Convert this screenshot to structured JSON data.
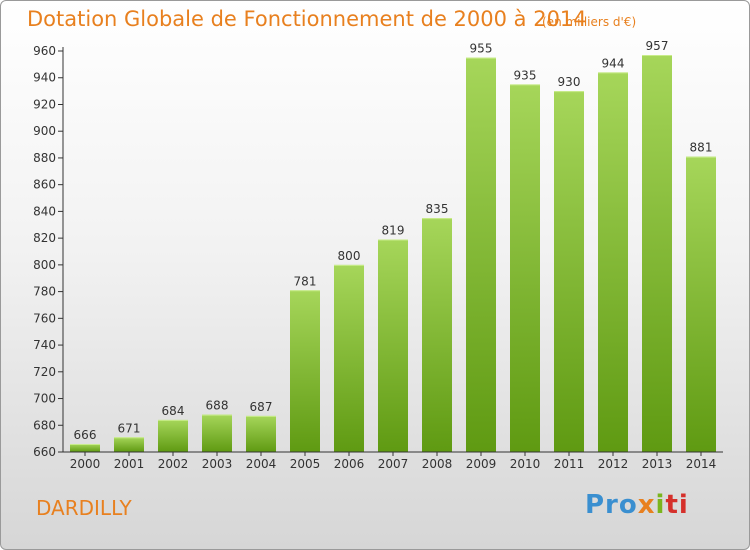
{
  "title": "Dotation Globale de Fonctionnement de 2000 à 2014",
  "subtitle": "(en milliers d'€)",
  "commune": "DARDILLY",
  "logo": {
    "text": "Proxiti",
    "letters": [
      "Pro",
      "x",
      "i",
      "ti"
    ]
  },
  "colors": {
    "accent": "#e8801f",
    "bar_top": "#a6d65a",
    "bar_bottom": "#5f9a12"
  },
  "chart_data": {
    "type": "bar",
    "title": "Dotation Globale de Fonctionnement de 2000 à 2014",
    "subtitle": "(en milliers d'€)",
    "xlabel": "",
    "ylabel": "",
    "categories": [
      "2000",
      "2001",
      "2002",
      "2003",
      "2004",
      "2005",
      "2006",
      "2007",
      "2008",
      "2009",
      "2010",
      "2011",
      "2012",
      "2013",
      "2014"
    ],
    "values": [
      666,
      671,
      684,
      688,
      687,
      781,
      800,
      819,
      835,
      955,
      935,
      930,
      944,
      957,
      881
    ],
    "ylim": [
      660,
      960
    ],
    "yticks": [
      660,
      680,
      700,
      720,
      740,
      760,
      780,
      800,
      820,
      840,
      860,
      880,
      900,
      920,
      940,
      960
    ],
    "grid": false,
    "legend": "none",
    "data_labels": true
  }
}
